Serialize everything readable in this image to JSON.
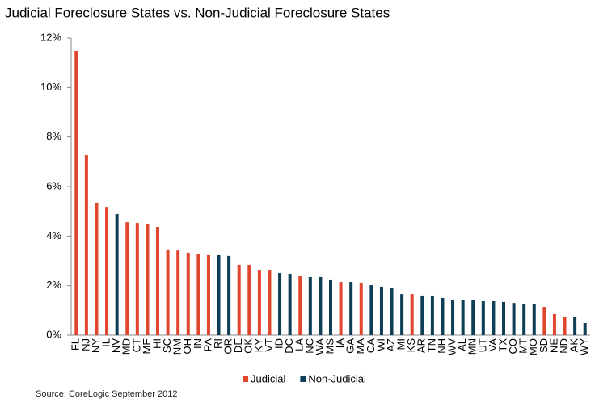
{
  "chart_data": {
    "type": "bar",
    "title": "Judicial Foreclosure States vs. Non-Judicial Foreclosure States",
    "source": "Source: CoreLogic September 2012",
    "categories": [
      "FL",
      "NJ",
      "NY",
      "IL",
      "NV",
      "MD",
      "CT",
      "ME",
      "HI",
      "SC",
      "NM",
      "OH",
      "IN",
      "PA",
      "RI",
      "OR",
      "DE",
      "OK",
      "KY",
      "VT",
      "ID",
      "DC",
      "LA",
      "NC",
      "WA",
      "MS",
      "IA",
      "GA",
      "MA",
      "CA",
      "WI",
      "AZ",
      "MI",
      "KS",
      "AR",
      "TN",
      "NH",
      "WV",
      "AL",
      "MN",
      "UT",
      "VA",
      "TX",
      "CO",
      "MT",
      "MO",
      "SD",
      "NE",
      "ND",
      "AK",
      "WY"
    ],
    "series": [
      {
        "name": "Judicial",
        "color": "#e0452e",
        "values": [
          11.48,
          7.27,
          5.35,
          5.18,
          null,
          4.56,
          4.53,
          4.5,
          4.37,
          3.46,
          3.42,
          3.33,
          3.29,
          3.23,
          null,
          null,
          2.84,
          2.84,
          2.64,
          2.64,
          null,
          null,
          2.38,
          null,
          null,
          null,
          2.15,
          null,
          2.12,
          null,
          null,
          null,
          null,
          1.66,
          null,
          null,
          null,
          null,
          null,
          null,
          null,
          null,
          null,
          null,
          null,
          null,
          1.14,
          0.85,
          0.75,
          null,
          null
        ]
      },
      {
        "name": "Non-Judicial",
        "color": "#0f3e57",
        "values": [
          null,
          null,
          null,
          null,
          4.89,
          null,
          null,
          null,
          null,
          null,
          null,
          null,
          null,
          null,
          3.23,
          3.2,
          null,
          null,
          null,
          null,
          2.51,
          2.48,
          null,
          2.35,
          2.35,
          2.22,
          null,
          2.15,
          null,
          2.02,
          1.96,
          1.89,
          1.66,
          null,
          1.6,
          1.6,
          1.5,
          1.43,
          1.43,
          1.43,
          1.37,
          1.37,
          1.34,
          1.3,
          1.27,
          1.24,
          null,
          null,
          null,
          0.75,
          0.49
        ]
      }
    ],
    "ylim": [
      0,
      12
    ],
    "yticks": [
      {
        "value": 0,
        "label": "0%"
      },
      {
        "value": 2,
        "label": "2%"
      },
      {
        "value": 4,
        "label": "4%"
      },
      {
        "value": 6,
        "label": "6%"
      },
      {
        "value": 8,
        "label": "8%"
      },
      {
        "value": 10,
        "label": "10%"
      },
      {
        "value": 12,
        "label": "12%"
      }
    ],
    "grid": false,
    "legend": "bottom"
  }
}
